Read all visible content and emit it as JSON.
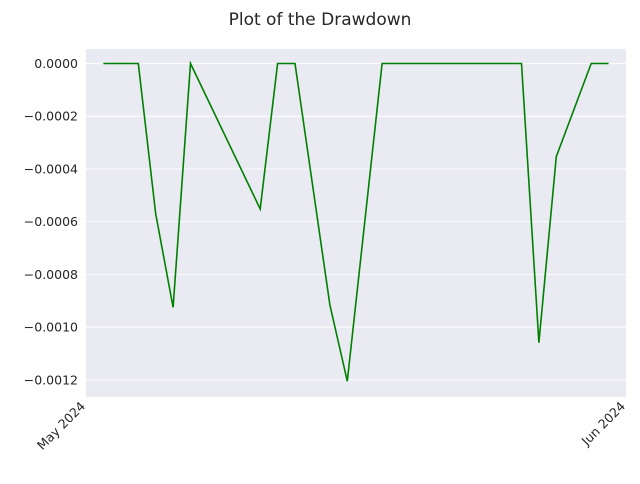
{
  "chart_data": {
    "type": "line",
    "title": "Plot of the Drawdown",
    "xlabel": "",
    "ylabel": "",
    "x_tick_labels": [
      "May 2024",
      "Jun 2024"
    ],
    "y_tick_labels": [
      "0.0000",
      "−0.0002",
      "−0.0004",
      "−0.0006",
      "−0.0008",
      "−0.0010",
      "−0.0012"
    ],
    "y_ticks": [
      0,
      -0.0002,
      -0.0004,
      -0.0006,
      -0.0008,
      -0.001,
      -0.0012
    ],
    "xlim": [
      "2024-05-01",
      "2024-06-01"
    ],
    "ylim": [
      -0.001265,
      5.5e-05
    ],
    "grid": true,
    "legend": "none",
    "series": [
      {
        "color": "#008000",
        "x": [
          "2024-05-02",
          "2024-05-03",
          "2024-05-04",
          "2024-05-05",
          "2024-05-06",
          "2024-05-07",
          "2024-05-11",
          "2024-05-12",
          "2024-05-13",
          "2024-05-15",
          "2024-05-16",
          "2024-05-18",
          "2024-05-26",
          "2024-05-27",
          "2024-05-28",
          "2024-05-30",
          "2024-05-31"
        ],
        "values": [
          0,
          0,
          0,
          -0.00057,
          -0.000925,
          0,
          -0.000552,
          0,
          0,
          -0.000916,
          -0.001205,
          0,
          0,
          -0.001059,
          -0.000353,
          0,
          0
        ]
      }
    ]
  },
  "colors": {
    "background": "#eaeaf2",
    "grid": "#ffffff",
    "line": "#008000",
    "text": "#262626"
  }
}
